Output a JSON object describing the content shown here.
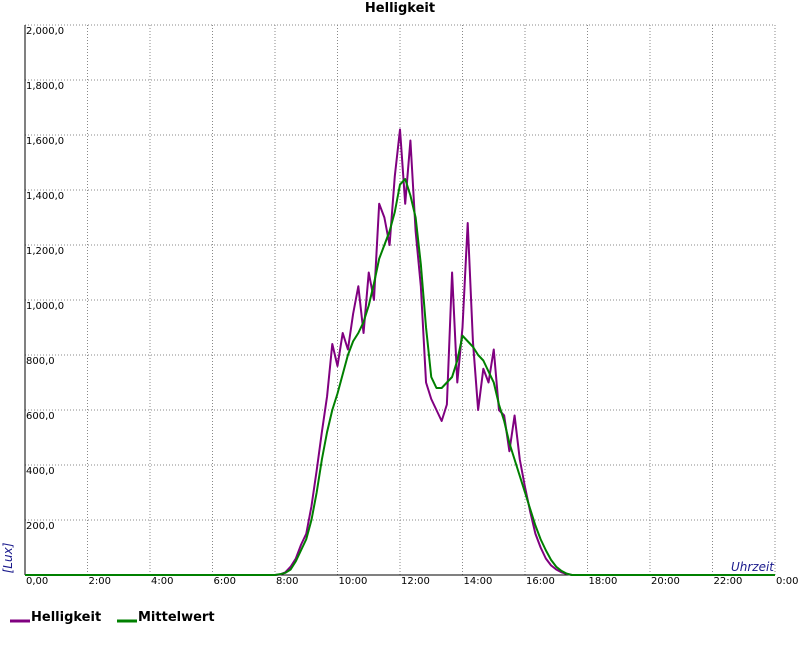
{
  "chart_data": {
    "type": "line",
    "title": "Helligkeit",
    "x_label": "Uhrzeit",
    "y_label": "[Lux]",
    "x": [
      0,
      480,
      490,
      500,
      510,
      520,
      530,
      540,
      550,
      560,
      570,
      580,
      590,
      600,
      610,
      620,
      630,
      640,
      650,
      660,
      670,
      680,
      690,
      700,
      710,
      720,
      730,
      740,
      750,
      760,
      770,
      780,
      790,
      800,
      810,
      820,
      830,
      840,
      850,
      860,
      870,
      880,
      890,
      900,
      910,
      920,
      930,
      940,
      950,
      960,
      970,
      980,
      990,
      1000,
      1010,
      1020,
      1030,
      1040,
      1050,
      1080,
      1440
    ],
    "series": [
      {
        "name": "Helligkeit",
        "color": "#800080",
        "values": [
          0,
          0,
          2,
          10,
          30,
          60,
          110,
          150,
          250,
          380,
          520,
          650,
          840,
          760,
          880,
          820,
          950,
          1050,
          880,
          1100,
          1000,
          1350,
          1300,
          1200,
          1450,
          1620,
          1350,
          1580,
          1250,
          1050,
          700,
          640,
          600,
          560,
          620,
          1100,
          700,
          900,
          1280,
          850,
          600,
          750,
          700,
          820,
          600,
          580,
          450,
          580,
          420,
          320,
          230,
          150,
          100,
          60,
          35,
          20,
          10,
          4,
          0,
          0,
          0
        ]
      },
      {
        "name": "Mittelwert",
        "color": "#008000",
        "values": [
          0,
          0,
          3,
          8,
          20,
          50,
          90,
          130,
          200,
          300,
          420,
          520,
          600,
          660,
          730,
          800,
          850,
          880,
          920,
          980,
          1060,
          1150,
          1200,
          1250,
          1320,
          1420,
          1440,
          1380,
          1300,
          1130,
          900,
          720,
          680,
          680,
          700,
          720,
          780,
          870,
          850,
          830,
          800,
          780,
          740,
          700,
          620,
          560,
          480,
          420,
          360,
          300,
          240,
          180,
          130,
          90,
          55,
          30,
          15,
          5,
          0,
          0,
          0
        ]
      }
    ],
    "xlim": [
      0,
      1440
    ],
    "xticks": [
      {
        "value": 0,
        "label": "0,00"
      },
      {
        "value": 120,
        "label": "2:00"
      },
      {
        "value": 240,
        "label": "4:00"
      },
      {
        "value": 360,
        "label": "6:00"
      },
      {
        "value": 480,
        "label": "8:00"
      },
      {
        "value": 600,
        "label": "10:00"
      },
      {
        "value": 720,
        "label": "12:00"
      },
      {
        "value": 840,
        "label": "14:00"
      },
      {
        "value": 960,
        "label": "16:00"
      },
      {
        "value": 1080,
        "label": "18:00"
      },
      {
        "value": 1200,
        "label": "20:00"
      },
      {
        "value": 1320,
        "label": "22:00"
      },
      {
        "value": 1440,
        "label": "0:00"
      }
    ],
    "ylim": [
      0,
      2000
    ],
    "yticks": [
      {
        "value": 200,
        "label": "200,0"
      },
      {
        "value": 400,
        "label": "400,0"
      },
      {
        "value": 600,
        "label": "600,0"
      },
      {
        "value": 800,
        "label": "800,0"
      },
      {
        "value": 1000,
        "label": "1,000,0"
      },
      {
        "value": 1200,
        "label": "1,200,0"
      },
      {
        "value": 1400,
        "label": "1,400,0"
      },
      {
        "value": 1600,
        "label": "1,600,0"
      },
      {
        "value": 1800,
        "label": "1,800,0"
      },
      {
        "value": 2000,
        "label": "2,000,0"
      }
    ],
    "grid": true
  }
}
